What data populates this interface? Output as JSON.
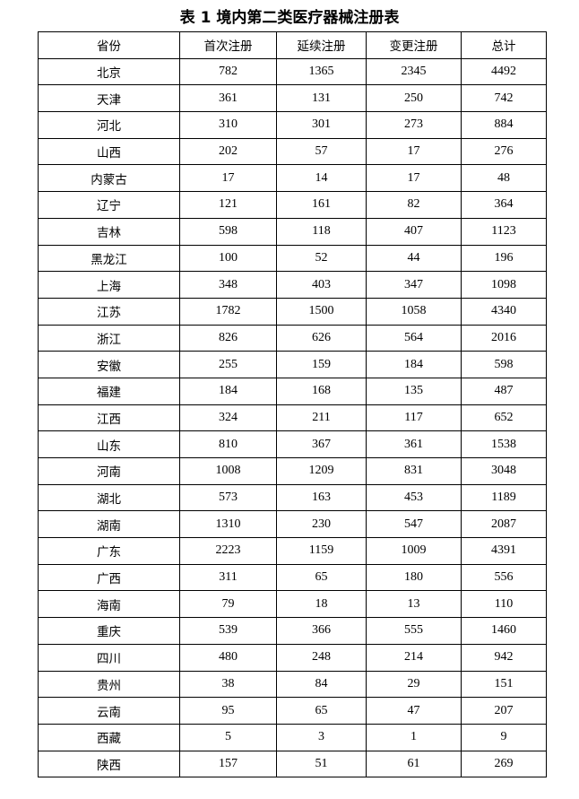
{
  "title": "表 1  境内第二类医疗器械注册表",
  "headers": [
    "省份",
    "首次注册",
    "延续注册",
    "变更注册",
    "总计"
  ],
  "rows": [
    [
      "北京",
      "782",
      "1365",
      "2345",
      "4492"
    ],
    [
      "天津",
      "361",
      "131",
      "250",
      "742"
    ],
    [
      "河北",
      "310",
      "301",
      "273",
      "884"
    ],
    [
      "山西",
      "202",
      "57",
      "17",
      "276"
    ],
    [
      "内蒙古",
      "17",
      "14",
      "17",
      "48"
    ],
    [
      "辽宁",
      "121",
      "161",
      "82",
      "364"
    ],
    [
      "吉林",
      "598",
      "118",
      "407",
      "1123"
    ],
    [
      "黑龙江",
      "100",
      "52",
      "44",
      "196"
    ],
    [
      "上海",
      "348",
      "403",
      "347",
      "1098"
    ],
    [
      "江苏",
      "1782",
      "1500",
      "1058",
      "4340"
    ],
    [
      "浙江",
      "826",
      "626",
      "564",
      "2016"
    ],
    [
      "安徽",
      "255",
      "159",
      "184",
      "598"
    ],
    [
      "福建",
      "184",
      "168",
      "135",
      "487"
    ],
    [
      "江西",
      "324",
      "211",
      "117",
      "652"
    ],
    [
      "山东",
      "810",
      "367",
      "361",
      "1538"
    ],
    [
      "河南",
      "1008",
      "1209",
      "831",
      "3048"
    ],
    [
      "湖北",
      "573",
      "163",
      "453",
      "1189"
    ],
    [
      "湖南",
      "1310",
      "230",
      "547",
      "2087"
    ],
    [
      "广东",
      "2223",
      "1159",
      "1009",
      "4391"
    ],
    [
      "广西",
      "311",
      "65",
      "180",
      "556"
    ],
    [
      "海南",
      "79",
      "18",
      "13",
      "110"
    ],
    [
      "重庆",
      "539",
      "366",
      "555",
      "1460"
    ],
    [
      "四川",
      "480",
      "248",
      "214",
      "942"
    ],
    [
      "贵州",
      "38",
      "84",
      "29",
      "151"
    ],
    [
      "云南",
      "95",
      "65",
      "47",
      "207"
    ],
    [
      "西藏",
      "5",
      "3",
      "1",
      "9"
    ],
    [
      "陕西",
      "157",
      "51",
      "61",
      "269"
    ]
  ]
}
